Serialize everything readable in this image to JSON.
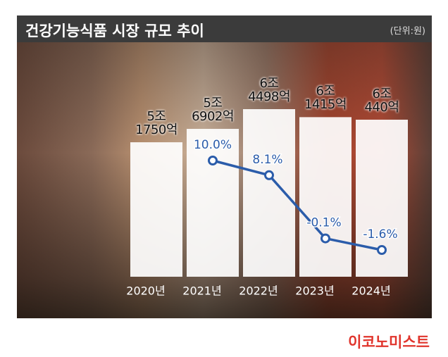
{
  "chart_data": {
    "type": "bar",
    "title": "건강기능식품 시장 규모 추이",
    "unit": "(단위:원)",
    "source": "이코노미스트",
    "categories": [
      "2020년",
      "2021년",
      "2022년",
      "2023년",
      "2024년"
    ],
    "series": [
      {
        "type": "bar",
        "color": "#ffffff",
        "values": [
          51750,
          56902,
          64498,
          61415,
          60440
        ],
        "value_labels": [
          "5조\n1750억",
          "5조\n6902억",
          "6조\n4498억",
          "6조\n1415억",
          "6조\n440억"
        ]
      },
      {
        "type": "line",
        "color": "#2b5caa",
        "values": [
          null,
          10.0,
          8.1,
          -0.1,
          -1.6
        ],
        "value_labels": [
          null,
          "10.0%",
          "8.1%",
          "-0.1%",
          "-1.6%"
        ]
      }
    ]
  }
}
